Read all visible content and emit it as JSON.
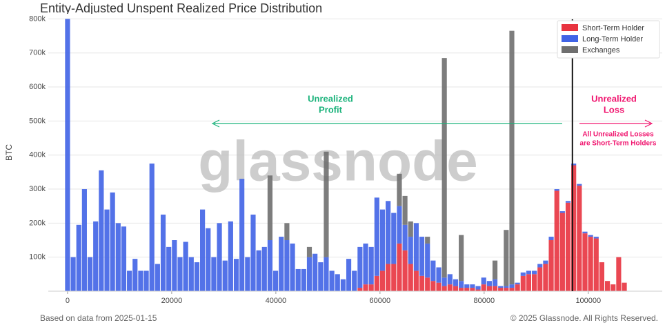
{
  "chart_data": {
    "type": "stacked_bar",
    "title": "Entity-Adjusted Unspent Realized Price Distribution",
    "y_label": "BTC",
    "watermark": "glassnode",
    "footer_left": "Based on data from 2025-01-15",
    "footer_right": "© 2025 Glassnode. All Rights Reserved.",
    "profit_label": [
      "Unrealized",
      "Profit"
    ],
    "profit_color": "#19b27a",
    "loss_label": [
      "Unrealized",
      "Loss"
    ],
    "loss_note": [
      "All Unrealized Losses",
      "are Short-Term Holders"
    ],
    "loss_color": "#f0146e",
    "current_price": 96950,
    "xlim": [
      -3700,
      114200
    ],
    "ylim": [
      0,
      815000
    ],
    "xticks": [
      0,
      20000,
      40000,
      60000,
      80000,
      100000
    ],
    "yticks": [
      {
        "value": 100000,
        "label": "100k"
      },
      {
        "value": 200000,
        "label": "200k"
      },
      {
        "value": 300000,
        "label": "300k"
      },
      {
        "value": 400000,
        "label": "400k"
      },
      {
        "value": 500000,
        "label": "500k"
      },
      {
        "value": 600000,
        "label": "600k"
      },
      {
        "value": 700000,
        "label": "700k"
      },
      {
        "value": 800000,
        "label": "800k"
      }
    ],
    "grid": true,
    "legend": "upper right",
    "x": [
      0,
      1080,
      2160,
      3240,
      4320,
      5400,
      6480,
      7560,
      8640,
      9720,
      10800,
      11880,
      12960,
      14040,
      15120,
      16200,
      17280,
      18360,
      19440,
      20520,
      21600,
      22680,
      23760,
      24840,
      25920,
      27000,
      28080,
      29160,
      30240,
      31320,
      32400,
      33480,
      34560,
      35640,
      36720,
      37800,
      38880,
      39960,
      41040,
      42120,
      43200,
      44280,
      45360,
      46440,
      47520,
      48600,
      49680,
      50760,
      51840,
      52920,
      54000,
      55080,
      56160,
      57240,
      58320,
      59400,
      60480,
      61560,
      62640,
      63720,
      64800,
      65880,
      66960,
      68040,
      69120,
      70200,
      71280,
      72360,
      73440,
      74520,
      75600,
      76680,
      77760,
      78840,
      79920,
      81000,
      82080,
      83160,
      84240,
      85320,
      86400,
      87480,
      88560,
      89640,
      90720,
      91800,
      92880,
      93960,
      95040,
      96120,
      97200,
      98280,
      99360,
      100440,
      101520,
      102600,
      103680,
      104760,
      105840,
      106920
    ],
    "series": [
      {
        "name": "Short-Term Holder",
        "color": "#e8333f",
        "values": [
          0,
          0,
          0,
          0,
          0,
          0,
          0,
          0,
          0,
          0,
          0,
          0,
          0,
          0,
          0,
          0,
          0,
          0,
          0,
          0,
          0,
          0,
          0,
          0,
          0,
          0,
          0,
          0,
          0,
          0,
          0,
          0,
          0,
          0,
          0,
          0,
          0,
          0,
          0,
          0,
          0,
          0,
          0,
          0,
          0,
          0,
          0,
          0,
          0,
          0,
          0,
          0,
          10000,
          20000,
          20000,
          45000,
          60000,
          80000,
          80000,
          140000,
          120000,
          80000,
          60000,
          45000,
          40000,
          30000,
          25000,
          15000,
          20000,
          15000,
          10000,
          10000,
          10000,
          5000,
          20000,
          15000,
          15000,
          10000,
          10000,
          10000,
          20000,
          45000,
          50000,
          50000,
          70000,
          80000,
          150000,
          295000,
          230000,
          260000,
          370000,
          310000,
          170000,
          160000,
          155000,
          85000,
          30000,
          20000,
          100000,
          25000
        ]
      },
      {
        "name": "Long-Term Holder",
        "color": "#4063e6",
        "values": [
          800000,
          100000,
          195000,
          300000,
          100000,
          205000,
          355000,
          240000,
          290000,
          200000,
          190000,
          60000,
          95000,
          60000,
          60000,
          375000,
          80000,
          225000,
          130000,
          150000,
          100000,
          145000,
          100000,
          85000,
          240000,
          185000,
          100000,
          200000,
          90000,
          205000,
          95000,
          330000,
          100000,
          225000,
          120000,
          130000,
          150000,
          60000,
          160000,
          150000,
          140000,
          65000,
          65000,
          100000,
          110000,
          85000,
          100000,
          60000,
          50000,
          35000,
          95000,
          60000,
          120000,
          120000,
          110000,
          230000,
          180000,
          185000,
          150000,
          110000,
          75000,
          80000,
          140000,
          115000,
          100000,
          60000,
          45000,
          25000,
          30000,
          20000,
          20000,
          10000,
          10000,
          10000,
          20000,
          15000,
          20000,
          5000,
          5000,
          10000,
          5000,
          10000,
          10000,
          10000,
          10000,
          10000,
          10000,
          5000,
          5000,
          5000,
          5000,
          5000,
          5000,
          5000,
          5000,
          0,
          0,
          0,
          0,
          0
        ]
      },
      {
        "name": "Exchanges",
        "color": "#6f6f6f",
        "values": [
          0,
          0,
          0,
          0,
          0,
          0,
          0,
          0,
          0,
          0,
          0,
          0,
          0,
          0,
          0,
          0,
          0,
          0,
          0,
          0,
          0,
          0,
          0,
          0,
          0,
          0,
          0,
          0,
          0,
          0,
          0,
          0,
          0,
          0,
          0,
          0,
          190000,
          0,
          0,
          50000,
          0,
          0,
          0,
          30000,
          0,
          0,
          310000,
          0,
          0,
          0,
          0,
          0,
          0,
          0,
          0,
          0,
          0,
          0,
          0,
          95000,
          85000,
          45000,
          0,
          0,
          20000,
          0,
          0,
          645000,
          0,
          0,
          135000,
          0,
          0,
          0,
          0,
          0,
          55000,
          0,
          165000,
          745000,
          0,
          0,
          0,
          0,
          0,
          0,
          0,
          0,
          0,
          0,
          0,
          0,
          0,
          0,
          0,
          0,
          0,
          0,
          0,
          0
        ]
      }
    ]
  }
}
